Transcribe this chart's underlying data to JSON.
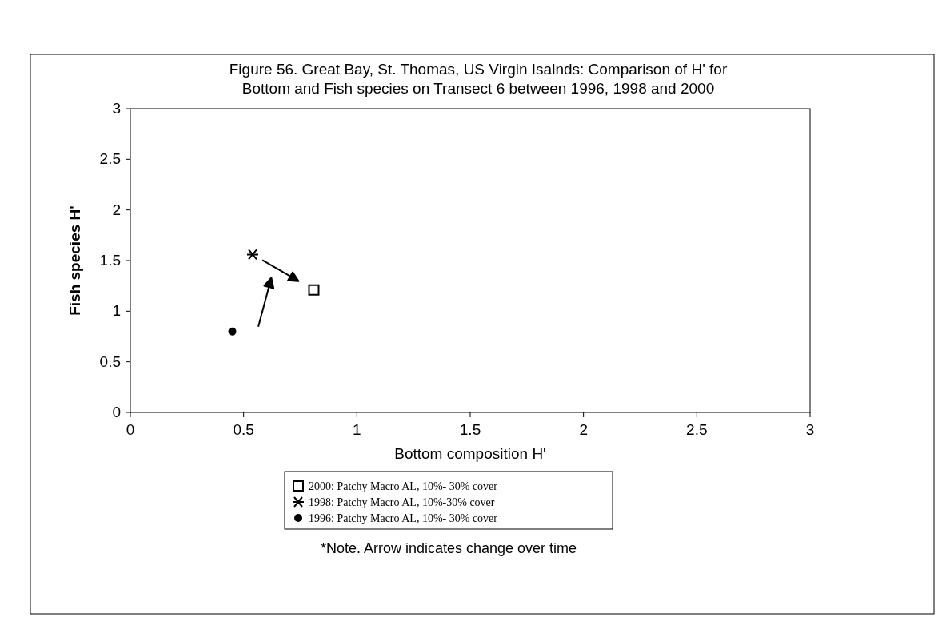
{
  "chart_data": {
    "type": "scatter",
    "title": "Figure 56. Great Bay, St. Thomas, US Virgin Isalnds: Comparison of H' for Bottom and  Fish species   on Transect 6 between 1996, 1998 and 2000",
    "xlabel": "Bottom composition H'",
    "ylabel": "Fish species H'",
    "xlim": [
      0,
      3
    ],
    "ylim": [
      0,
      3
    ],
    "xticks": [
      0,
      0.5,
      1,
      1.5,
      2,
      2.5,
      3
    ],
    "yticks": [
      0,
      0.5,
      1,
      1.5,
      2,
      2.5,
      3
    ],
    "grid": false,
    "legend": "bottom",
    "series": [
      {
        "name": "2000: Patchy Macro AL, 10%- 30% cover",
        "color": "#000000",
        "marker": "square",
        "x": [
          0.81
        ],
        "values": [
          1.21
        ]
      },
      {
        "name": "1998: Patchy Macro AL, 10%-30% cover",
        "color": "#000000",
        "marker": "cross",
        "x": [
          0.54
        ],
        "values": [
          1.56
        ]
      },
      {
        "name": "1996: Patchy Macro AL, 10%- 30% cover",
        "color": "#000000",
        "marker": "circle",
        "x": [
          0.45
        ],
        "values": [
          0.8
        ]
      }
    ],
    "annotations": [
      "*Note. Arrow indicates change over time"
    ]
  }
}
